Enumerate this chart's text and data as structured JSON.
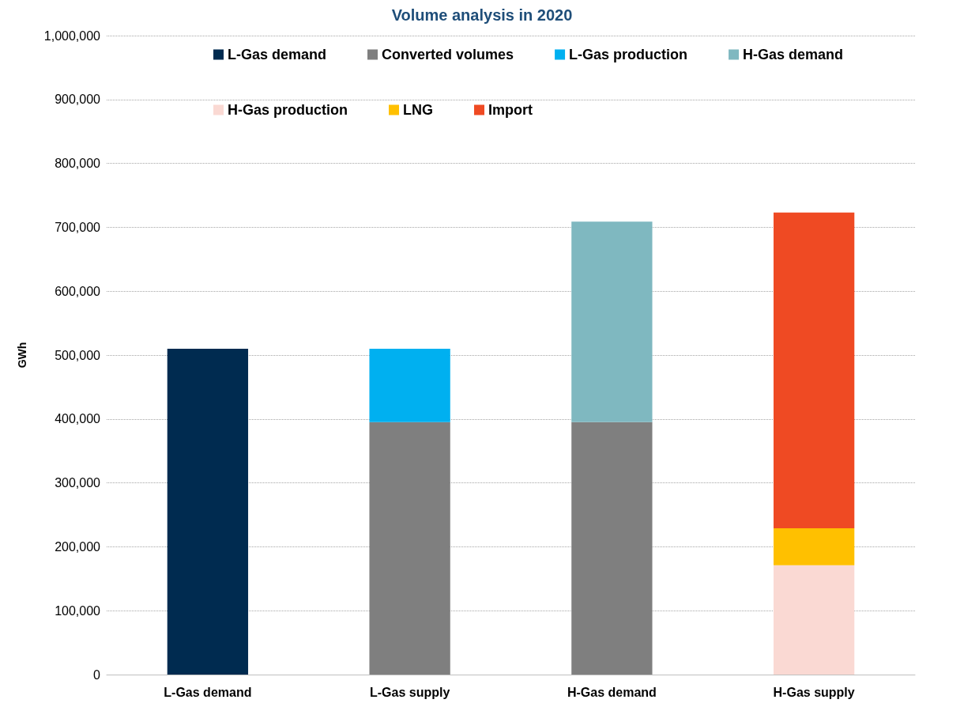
{
  "chart_data": {
    "type": "bar",
    "title": "Volume analysis in 2020",
    "ylabel": "GWh",
    "categories": [
      "L-Gas demand",
      "L-Gas supply",
      "H-Gas demand",
      "H-Gas supply"
    ],
    "stacked": true,
    "series": [
      {
        "name": "L-Gas demand",
        "color": "#002b50",
        "values": [
          510000,
          null,
          null,
          null
        ]
      },
      {
        "name": "Converted volumes",
        "color": "#7f7f7f",
        "values": [
          null,
          395000,
          395000,
          null
        ]
      },
      {
        "name": "L-Gas production",
        "color": "#00b0f0",
        "values": [
          null,
          115000,
          null,
          null
        ]
      },
      {
        "name": "H-Gas demand",
        "color": "#7fb8c0",
        "values": [
          null,
          null,
          314000,
          null
        ]
      },
      {
        "name": "H-Gas production",
        "color": "#fad9d3",
        "values": [
          null,
          null,
          null,
          171000
        ]
      },
      {
        "name": "LNG",
        "color": "#ffc000",
        "values": [
          null,
          null,
          null,
          58000
        ]
      },
      {
        "name": "Import",
        "color": "#ef4a23",
        "values": [
          null,
          null,
          null,
          494000
        ]
      }
    ],
    "ylim": [
      0,
      1000000
    ],
    "yticks": [
      {
        "value": 0,
        "label": "0"
      },
      {
        "value": 100000,
        "label": "100,000"
      },
      {
        "value": 200000,
        "label": "200,000"
      },
      {
        "value": 300000,
        "label": "300,000"
      },
      {
        "value": 400000,
        "label": "400,000"
      },
      {
        "value": 500000,
        "label": "500,000"
      },
      {
        "value": 600000,
        "label": "600,000"
      },
      {
        "value": 700000,
        "label": "700,000"
      },
      {
        "value": 800000,
        "label": "800,000"
      },
      {
        "value": 900000,
        "label": "900,000"
      },
      {
        "value": 1000000,
        "label": "1,000,000"
      }
    ],
    "grid": "y",
    "legend": "top"
  }
}
